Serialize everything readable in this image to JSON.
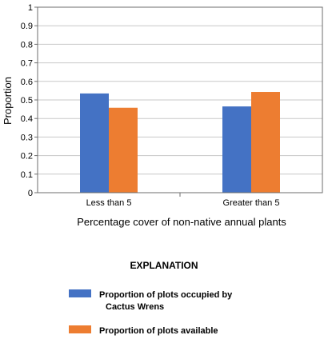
{
  "chart_data": {
    "type": "bar",
    "categories": [
      "Less than 5",
      "Greater than 5"
    ],
    "series": [
      {
        "name": "Proportion of plots occupied by Cactus Wrens",
        "legend_lines": [
          "Proportion of plots occupied by",
          "Cactus Wrens"
        ],
        "color": "#4472c4",
        "values": [
          0.535,
          0.465
        ]
      },
      {
        "name": "Proportion of plots available",
        "legend_lines": [
          "Proportion of plots available"
        ],
        "color": "#ed7d31",
        "values": [
          0.458,
          0.543
        ]
      }
    ],
    "xlabel": "Percentage cover of non-native annual plants",
    "ylabel": "Proportion",
    "ylim": [
      0,
      1
    ],
    "yticks": [
      "0",
      "0.1",
      "0.2",
      "0.3",
      "0.4",
      "0.5",
      "0.6",
      "0.7",
      "0.8",
      "0.9",
      "1"
    ],
    "grid": true,
    "legend": {
      "title": "EXPLANATION",
      "placement": "bottom"
    }
  }
}
